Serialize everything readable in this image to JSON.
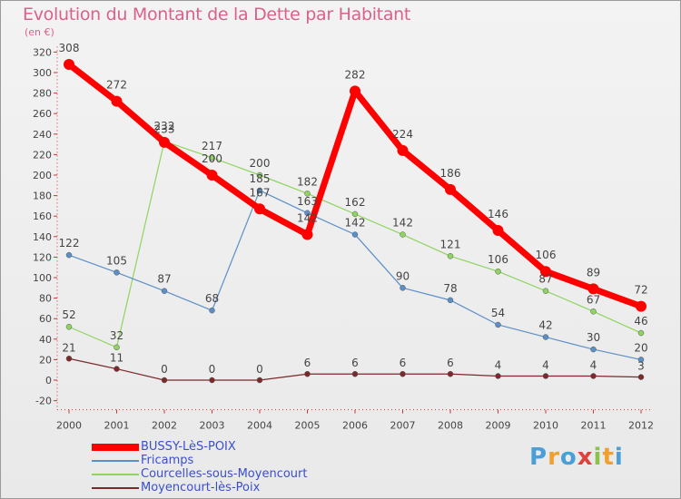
{
  "chart_data": {
    "type": "line",
    "title": "Evolution du Montant de la Dette par Habitant",
    "unit_label": "(en €)",
    "x": [
      "2000",
      "2001",
      "2002",
      "2003",
      "2004",
      "2005",
      "2006",
      "2007",
      "2008",
      "2009",
      "2010",
      "2011",
      "2012"
    ],
    "ylim": [
      -20,
      320
    ],
    "yticks": [
      -20,
      0,
      20,
      40,
      60,
      80,
      100,
      120,
      140,
      160,
      180,
      200,
      220,
      240,
      260,
      280,
      300,
      320
    ],
    "grid": false,
    "legend_position": "bottom-left",
    "series": [
      {
        "name": "BUSSY-LèS-POIX",
        "color": "#ff0000",
        "values": [
          308,
          272,
          232,
          200,
          167,
          142,
          282,
          224,
          186,
          146,
          106,
          89,
          72
        ],
        "labels": [
          "308",
          "272",
          "232",
          "200",
          "167",
          "142",
          "282",
          "224",
          "186",
          "146",
          "106",
          "89",
          "72"
        ]
      },
      {
        "name": "Fricamps",
        "color": "#5b8fc7",
        "values": [
          122,
          105,
          87,
          68,
          185,
          163,
          142,
          90,
          78,
          54,
          42,
          30,
          20
        ],
        "labels": [
          "122",
          "105",
          "87",
          "68",
          "185",
          "163",
          "142",
          "90",
          "78",
          "54",
          "42",
          "30",
          "20"
        ]
      },
      {
        "name": "Courcelles-sous-Moyencourt",
        "color": "#8fd460",
        "values": [
          52,
          32,
          233,
          217,
          200,
          182,
          162,
          142,
          121,
          106,
          87,
          67,
          46
        ],
        "labels": [
          "52",
          "32",
          "233",
          "217",
          "200",
          "182",
          "162",
          "142",
          "121",
          "106",
          "87",
          "67",
          "46"
        ]
      },
      {
        "name": "Moyencourt-lès-Poix",
        "color": "#7a2a2a",
        "values": [
          21,
          11,
          0,
          0,
          0,
          6,
          6,
          6,
          6,
          4,
          4,
          4,
          3
        ],
        "labels": [
          "21",
          "11",
          "0",
          "0",
          "0",
          "6",
          "6",
          "6",
          "6",
          "4",
          "4",
          "4",
          "3"
        ]
      }
    ]
  },
  "legend": {
    "label_color": "#3a4fd0"
  },
  "logo": {
    "letters": [
      "P",
      "r",
      "o",
      "x",
      "i",
      "t",
      "i"
    ],
    "colors": [
      "#4a9fd8",
      "#f0a030",
      "#4a9fd8",
      "#e0403a",
      "#8ac34a",
      "#f0a030",
      "#4a9fd8"
    ]
  }
}
